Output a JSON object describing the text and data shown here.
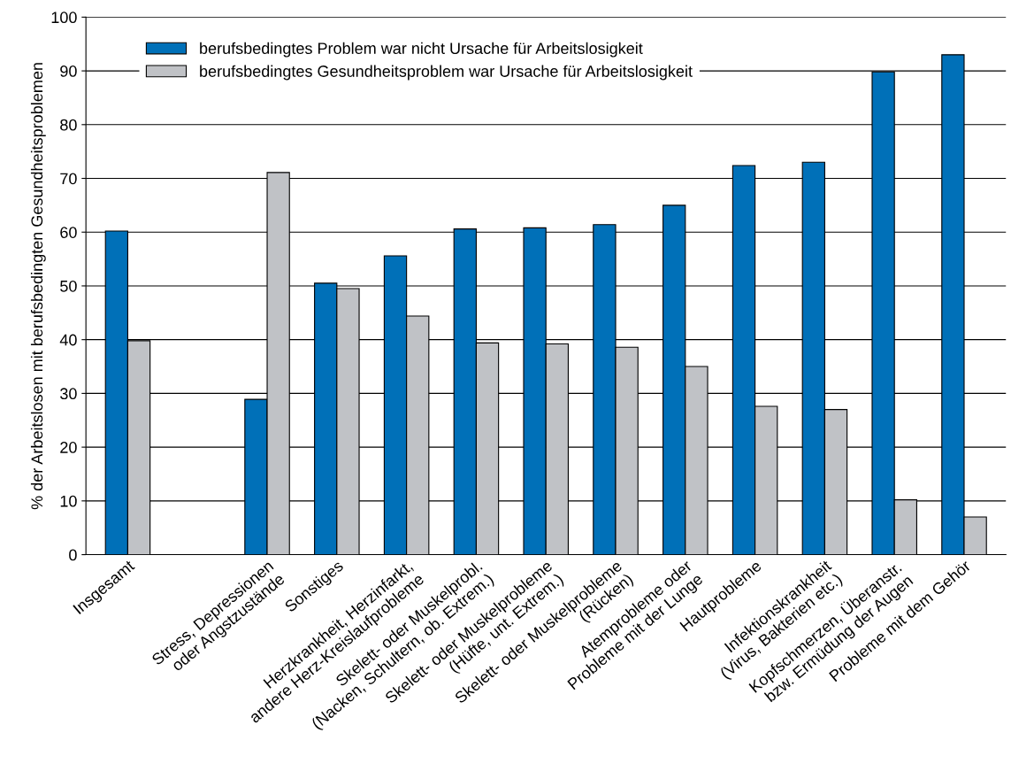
{
  "chart_data": {
    "type": "bar",
    "ylabel": "% der Arbeitslosen mit berufsbedingten Gesundheitsproblemen",
    "categories": [
      "Insgesamt",
      null,
      "Stress, Depressionen\noder Angstzustände",
      "Sonstiges",
      "Herzkrankheit, Herzinfarkt,\nandere Herz-Kreislaufprobleme",
      "Skelett- oder Muskelprobl.\n(Nacken, Schultern, ob. Extrem.)",
      "Skelett- oder Muskelprobleme\n(Hüfte, unt. Extrem.)",
      "Skelett- oder Muskelprobleme\n(Rücken)",
      "Atemprobleme oder\nProbleme mit der Lunge",
      "Hautprobleme",
      "Infektionskrankheit\n(Virus, Bakterien etc.)",
      "Kopfschmerzen, Überanstr.\nbzw. Ermüdung der Augen",
      "Probleme mit dem Gehör"
    ],
    "series": [
      {
        "name": "berufsbedingtes Problem war nicht Ursache für Arbeitslosigkeit",
        "color": "#0070b8",
        "values": [
          60.2,
          null,
          28.9,
          50.5,
          55.6,
          60.6,
          60.8,
          61.4,
          65.0,
          72.4,
          73.0,
          89.8,
          93.0
        ]
      },
      {
        "name": "berufsbedingtes Gesundheitsproblem war Ursache für Arbeitslosigkeit",
        "color": "#c0c2c6",
        "values": [
          39.8,
          null,
          71.1,
          49.5,
          44.4,
          39.4,
          39.2,
          38.6,
          35.0,
          27.6,
          27.0,
          10.2,
          7.0
        ]
      }
    ],
    "ylim": [
      0,
      100
    ],
    "yticks": [
      0,
      10,
      20,
      30,
      40,
      50,
      60,
      70,
      80,
      90,
      100
    ],
    "grid": "y",
    "legend": "top left"
  }
}
